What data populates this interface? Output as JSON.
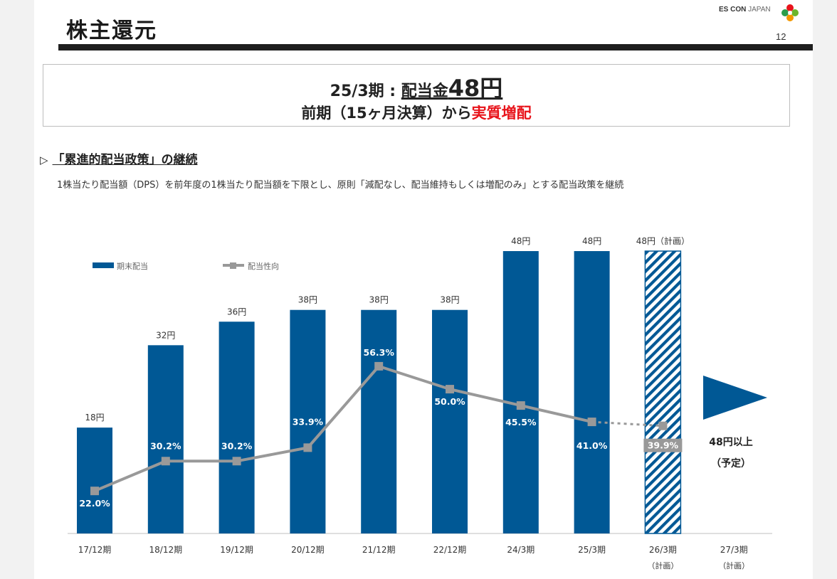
{
  "header": {
    "title": "株主還元",
    "logo_brand": "ES CON",
    "logo_brand2": "JAPAN",
    "page_number": "12"
  },
  "headline": {
    "line1_prefix": "25/3期 : ",
    "line1_label": "配当金",
    "line1_amount": "48円",
    "line2_prefix": "前期（15ヶ月決算）から",
    "line2_highlight": "実質増配"
  },
  "section": {
    "title": "「累進的配当政策」の継続",
    "description": "1株当たり配当額（DPS）を前年度の1株当たり配当額を下限とし、原則「減配なし、配当維持もしくは増配のみ」とする配当政策を継続"
  },
  "outlook": {
    "line1": "48円以上",
    "line2": "（予定）"
  },
  "colors": {
    "bar": "#005895",
    "line": "#999999",
    "hatch": "#005895",
    "red": "#e8141b"
  },
  "chart_data": {
    "type": "bar",
    "categories": [
      "17/12期",
      "18/12期",
      "19/12期",
      "20/12期",
      "21/12期",
      "22/12期",
      "24/3期",
      "25/3期",
      "26/3期",
      "27/3期"
    ],
    "category_sub": [
      "",
      "",
      "",
      "",
      "",
      "",
      "",
      "",
      "（計画）",
      "（計画）"
    ],
    "series": [
      {
        "name": "期末配当",
        "values": [
          18,
          32,
          36,
          38,
          38,
          38,
          48,
          48,
          48,
          null
        ],
        "labels": [
          "18円",
          "32円",
          "36円",
          "38円",
          "38円",
          "38円",
          "48円",
          "48円",
          "48円（計画）",
          ""
        ],
        "plan_index": 8
      },
      {
        "name": "配当性向",
        "values": [
          22.0,
          30.2,
          30.2,
          33.9,
          56.3,
          50.0,
          45.5,
          41.0,
          39.9,
          null
        ],
        "labels": [
          "22.0%",
          "30.2%",
          "30.2%",
          "33.9%",
          "56.3%",
          "50.0%",
          "45.5%",
          "41.0%",
          "39.9%",
          ""
        ],
        "plan_index": 8
      }
    ],
    "bar_ylim": [
      0,
      48
    ],
    "legend_position": "top-left"
  }
}
